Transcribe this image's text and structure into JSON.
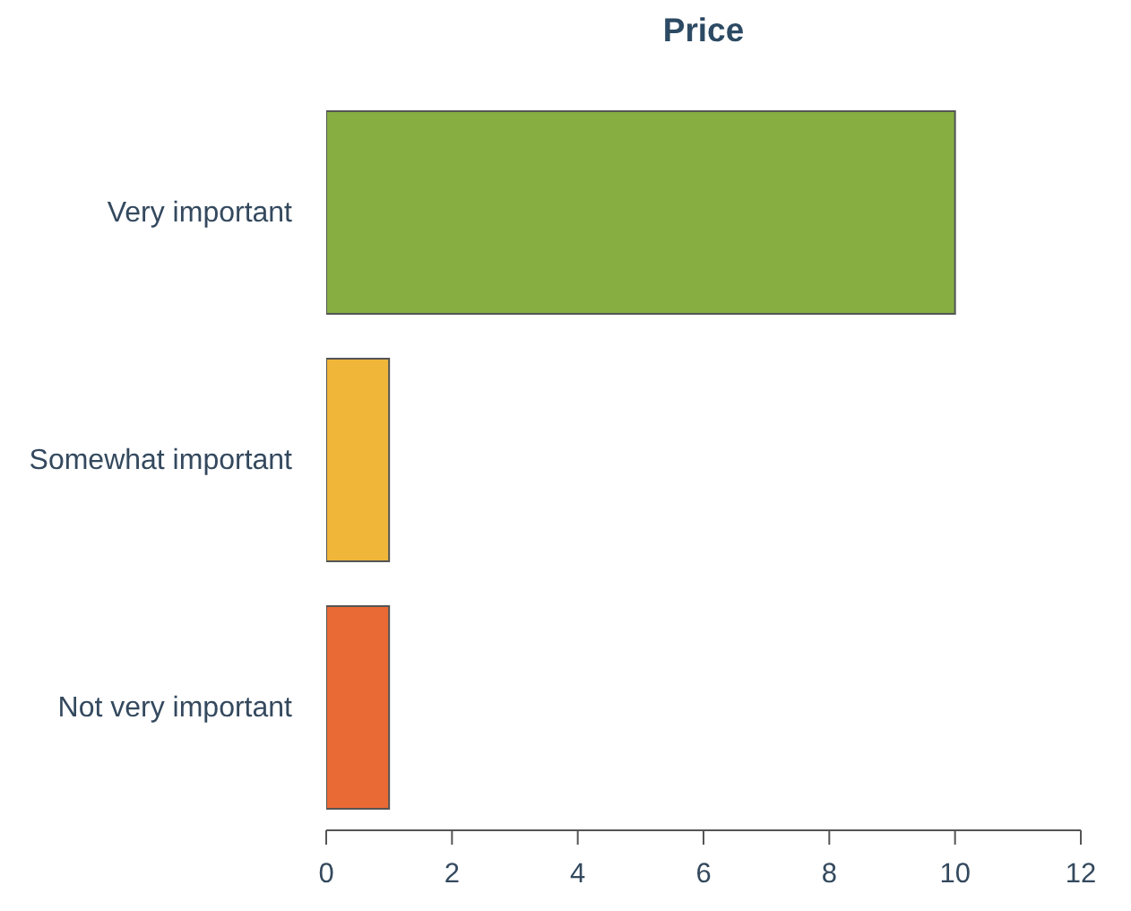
{
  "chart_data": {
    "type": "bar",
    "title": "Price",
    "orientation": "horizontal",
    "categories": [
      "Very important",
      "Somewhat important",
      "Not very important"
    ],
    "values": [
      10,
      1,
      1
    ],
    "colors": [
      "#86ae41",
      "#f0b63a",
      "#e96a35"
    ],
    "xlim": [
      0,
      12
    ],
    "xticks": [
      0,
      2,
      4,
      6,
      8,
      10,
      12
    ]
  }
}
